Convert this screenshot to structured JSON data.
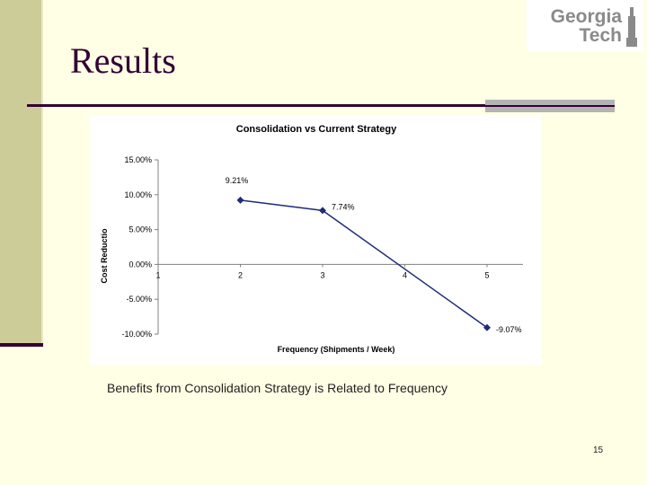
{
  "slide": {
    "title": "Results",
    "caption": "Benefits from Consolidation Strategy is Related to Frequency",
    "page_number": "15",
    "logo_text": "Georgia\nTech",
    "logo_name": "Georgia Tech logo"
  },
  "colors": {
    "background": "#ffffe5",
    "sidebar": "#cccc99",
    "accent": "#330033",
    "series": "#1f2c7a"
  },
  "chart_data": {
    "type": "line",
    "title": "Consolidation vs Current Strategy",
    "xlabel": "Frequency (Shipments / Week)",
    "ylabel": "Cost Reductio",
    "categories": [
      "1",
      "2",
      "3",
      "4",
      "5"
    ],
    "y_ticks": [
      "15.00%",
      "10.00%",
      "5.00%",
      "0.00%",
      "-5.00%",
      "-10.00%"
    ],
    "y_tick_values": [
      15,
      10,
      5,
      0,
      -5,
      -10
    ],
    "ylim": [
      -10,
      15
    ],
    "grid": false,
    "legend": "none",
    "series": [
      {
        "x": [
          2,
          3,
          5
        ],
        "values": [
          9.21,
          7.74,
          -9.07
        ],
        "labels": [
          "9.21%",
          "7.74%",
          "-9.07%"
        ]
      }
    ]
  }
}
